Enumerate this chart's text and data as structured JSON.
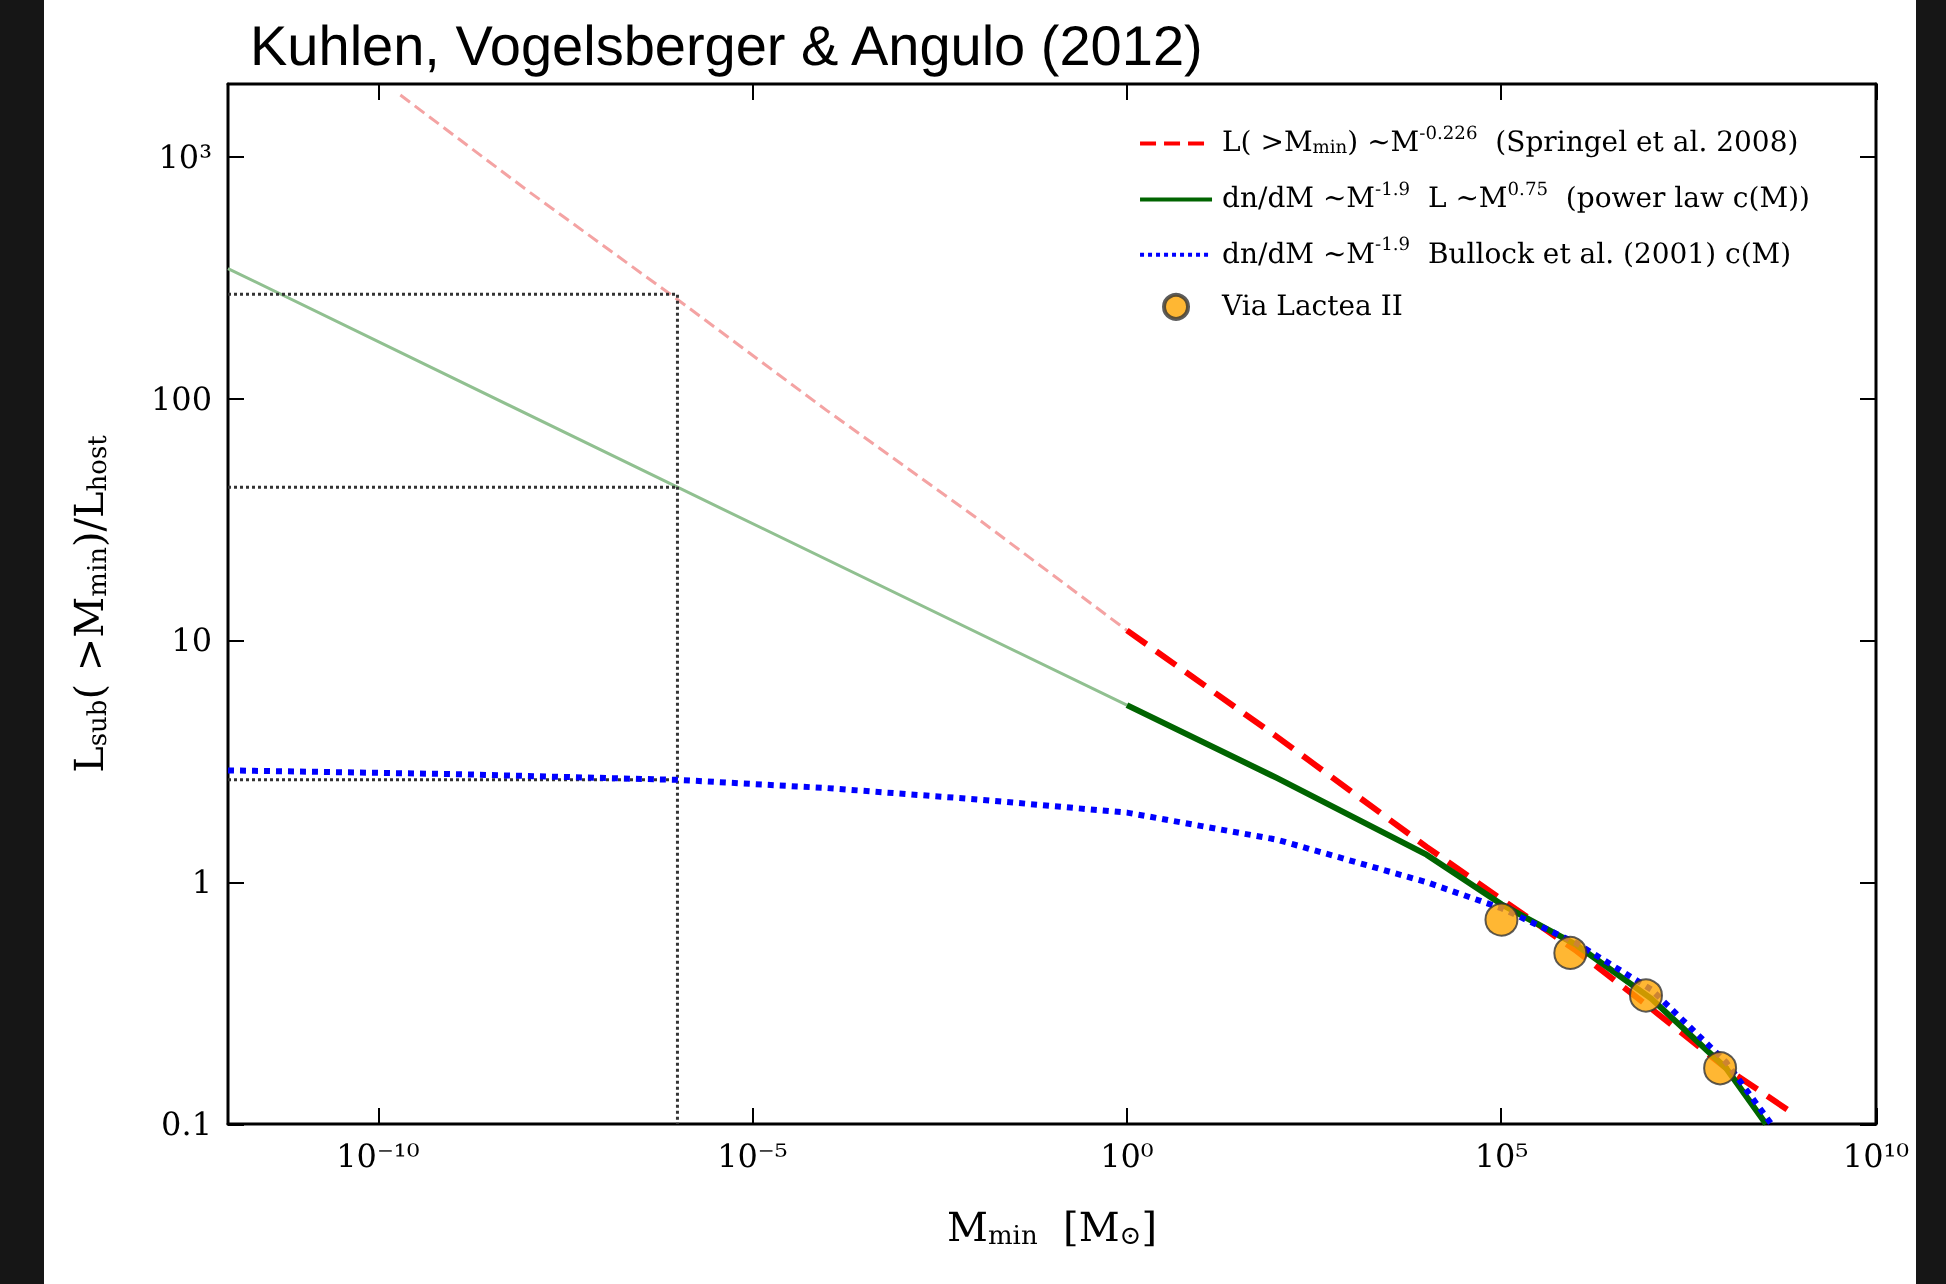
{
  "chart_data": {
    "type": "line",
    "title": "Kuhlen, Vogelsberger & Angulo (2012)",
    "xlabel": "M$_{min}$  [M$_{⊙}$]",
    "ylabel": "L$_{sub}$( >M$_{min}$)/L$_{host}$",
    "log": "xy",
    "xlim": [
      1e-12,
      10000000000.0
    ],
    "ylim": [
      0.1,
      2000
    ],
    "xticks": [
      {
        "value": 1e-10,
        "label": "10⁻¹⁰"
      },
      {
        "value": 1e-05,
        "label": "10⁻⁵"
      },
      {
        "value": 1,
        "label": "10⁰"
      },
      {
        "value": 100000,
        "label": "10⁵"
      },
      {
        "value": 10000000000,
        "label": "10¹⁰"
      }
    ],
    "yticks": [
      0.1,
      1,
      10,
      100,
      {
        "value": 1000,
        "label": "10³"
      }
    ],
    "grid": false,
    "legend": "top right",
    "series": [
      {
        "color": "#f4a3a3",
        "line_style": "dashed",
        "x": [
          2e-10,
          1e-08,
          1e-06,
          0.0001,
          0.01,
          1
        ],
        "values": [
          1800,
          724,
          257,
          89,
          32,
          11
        ]
      },
      {
        "color": "#90c090",
        "line_style": "solid",
        "x": [
          1e-12,
          1e-06,
          1
        ],
        "values": [
          345,
          43,
          5.4
        ]
      },
      {
        "color": "#333333",
        "line_style": "dotted",
        "x": [
          1e-12,
          1e-06,
          1e-06
        ],
        "values": [
          270,
          270,
          0.1
        ]
      },
      {
        "color": "#333333",
        "line_style": "dotted",
        "x": [
          1e-12,
          1e-06
        ],
        "values": [
          43,
          43
        ]
      },
      {
        "color": "#333333",
        "line_style": "dotted",
        "x": [
          1e-12,
          1e-06
        ],
        "values": [
          2.65,
          2.65
        ]
      },
      {
        "name": "L( >M$_{min}$) ~M$^{-0.226}$  (Springel et al. 2008)",
        "color": "#ff0000",
        "line_style": "dashed",
        "x": [
          1,
          100,
          10000,
          100000,
          1000000,
          10000000,
          100000000,
          800000000
        ],
        "values": [
          11,
          4,
          1.4,
          0.85,
          0.52,
          0.3,
          0.17,
          0.11
        ]
      },
      {
        "name": "dn/dM ~M$^{-1.9}$  L ~M$^{0.75}$  (power law c(M))",
        "color": "#006400",
        "line_style": "solid",
        "x": [
          1,
          100,
          10000,
          100000,
          1000000,
          10000000,
          100000000,
          340000000
        ],
        "values": [
          5.4,
          2.7,
          1.3,
          0.81,
          0.55,
          0.33,
          0.17,
          0.1
        ]
      },
      {
        "name": "dn/dM ~M$^{-1.9}$  Bullock et al. (2001) c(M)",
        "color": "#0000ff",
        "line_style": "dotted",
        "x": [
          1e-12,
          1e-09,
          1e-06,
          0.0001,
          0.01,
          1,
          100,
          10000,
          100000,
          1000000,
          10000000,
          100000000,
          400000000
        ],
        "values": [
          2.9,
          2.8,
          2.65,
          2.45,
          2.2,
          1.94,
          1.5,
          1.0,
          0.78,
          0.56,
          0.36,
          0.18,
          0.1
        ]
      },
      {
        "name": "Via Lactea II",
        "type": "scatter",
        "marker": "circle",
        "color": "#ffa500",
        "x": [
          100000,
          830000,
          8500000,
          83000000
        ],
        "values": [
          0.7,
          0.51,
          0.34,
          0.17
        ]
      }
    ]
  }
}
